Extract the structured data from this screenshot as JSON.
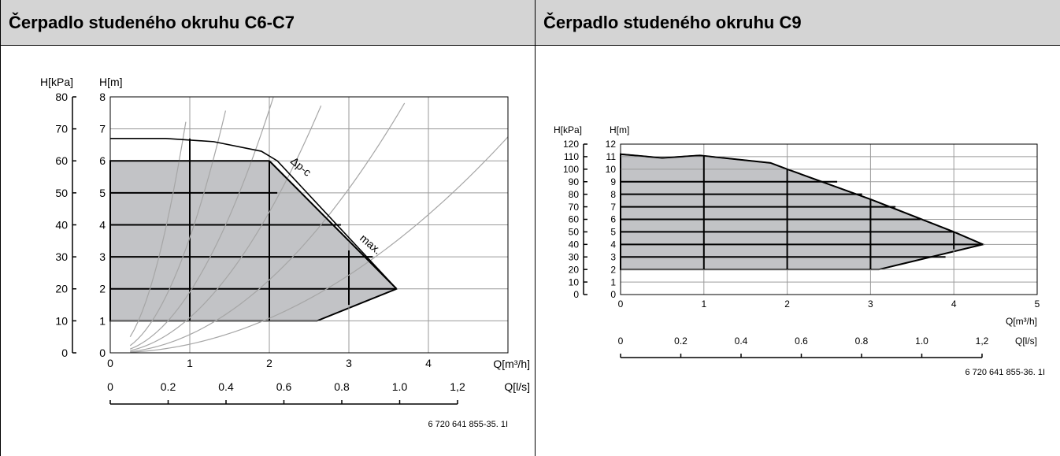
{
  "panels": [
    {
      "title": "Čerpadlo studeného okruhu C6-C7",
      "chart_data": {
        "type": "area",
        "axes": {
          "y_left_label": "H[kPa]",
          "y_right_label": "H[m]",
          "x_label": "Q[m³/h]",
          "x2_label": "Q[l/s]",
          "xlim": [
            0,
            5
          ],
          "ylim": [
            0,
            8
          ],
          "x_ticks": [
            "0",
            "1",
            "2",
            "3",
            "4"
          ],
          "x2_ticks": [
            "0",
            "0.2",
            "0.4",
            "0.6",
            "0.8",
            "1.0",
            "1,2"
          ],
          "y_ticks_m": [
            "0",
            "1",
            "2",
            "3",
            "4",
            "5",
            "6",
            "7",
            "8"
          ],
          "y_ticks_kpa": [
            "0",
            "10",
            "20",
            "30",
            "40",
            "50",
            "60",
            "70",
            "80"
          ],
          "grid": true
        },
        "series": [
          {
            "name": "Δp-c",
            "x": [
              0,
              1,
              2,
              3.6
            ],
            "y": [
              6,
              6,
              6,
              2
            ]
          },
          {
            "name": "max.",
            "x": [
              0,
              0.7,
              1.3,
              1.9,
              2.1,
              3.6
            ],
            "y": [
              6.7,
              6.7,
              6.6,
              6.3,
              6.0,
              2.0
            ]
          }
        ],
        "operating_area": {
          "x": [
            0,
            2,
            3.6,
            2.6,
            0
          ],
          "y": [
            6,
            6,
            2,
            1,
            1
          ]
        },
        "annotations": [
          "Δp-c",
          "max."
        ],
        "reference": "6 720 641 855-35. 1I"
      }
    },
    {
      "title": "Čerpadlo studeného okruhu C9",
      "chart_data": {
        "type": "area",
        "axes": {
          "y_left_label": "H[kPa]",
          "y_right_label": "H[m]",
          "x_label": "Q[m³/h]",
          "x2_label": "Q[l/s]",
          "xlim": [
            0,
            5
          ],
          "ylim": [
            0,
            12
          ],
          "x_ticks": [
            "0",
            "1",
            "2",
            "3",
            "4",
            "5"
          ],
          "x2_ticks": [
            "0",
            "0.2",
            "0.4",
            "0.6",
            "0.8",
            "1.0",
            "1,2"
          ],
          "y_ticks_m": [
            "0",
            "1",
            "2",
            "3",
            "4",
            "5",
            "6",
            "7",
            "8",
            "9",
            "10",
            "11",
            "12"
          ],
          "y_ticks_kpa": [
            "0",
            "10",
            "20",
            "30",
            "40",
            "50",
            "60",
            "70",
            "80",
            "90",
            "100",
            "110",
            "120"
          ],
          "grid": true
        },
        "series": [
          {
            "name": "max.",
            "x": [
              0,
              0.5,
              0.95,
              1.8,
              2.0,
              3.0,
              4.0,
              4.35
            ],
            "y": [
              11.2,
              10.9,
              11.1,
              10.5,
              10.0,
              7.6,
              5.0,
              4.0
            ]
          }
        ],
        "operating_area": {
          "x": [
            0,
            0.5,
            0.95,
            1.8,
            2.0,
            3.0,
            4.0,
            4.35,
            3.1,
            0
          ],
          "y": [
            11.2,
            10.9,
            11.1,
            10.5,
            10.0,
            7.6,
            5.0,
            4.0,
            2.0,
            2.0
          ]
        },
        "reference": "6 720 641 855-36. 1I"
      }
    }
  ]
}
